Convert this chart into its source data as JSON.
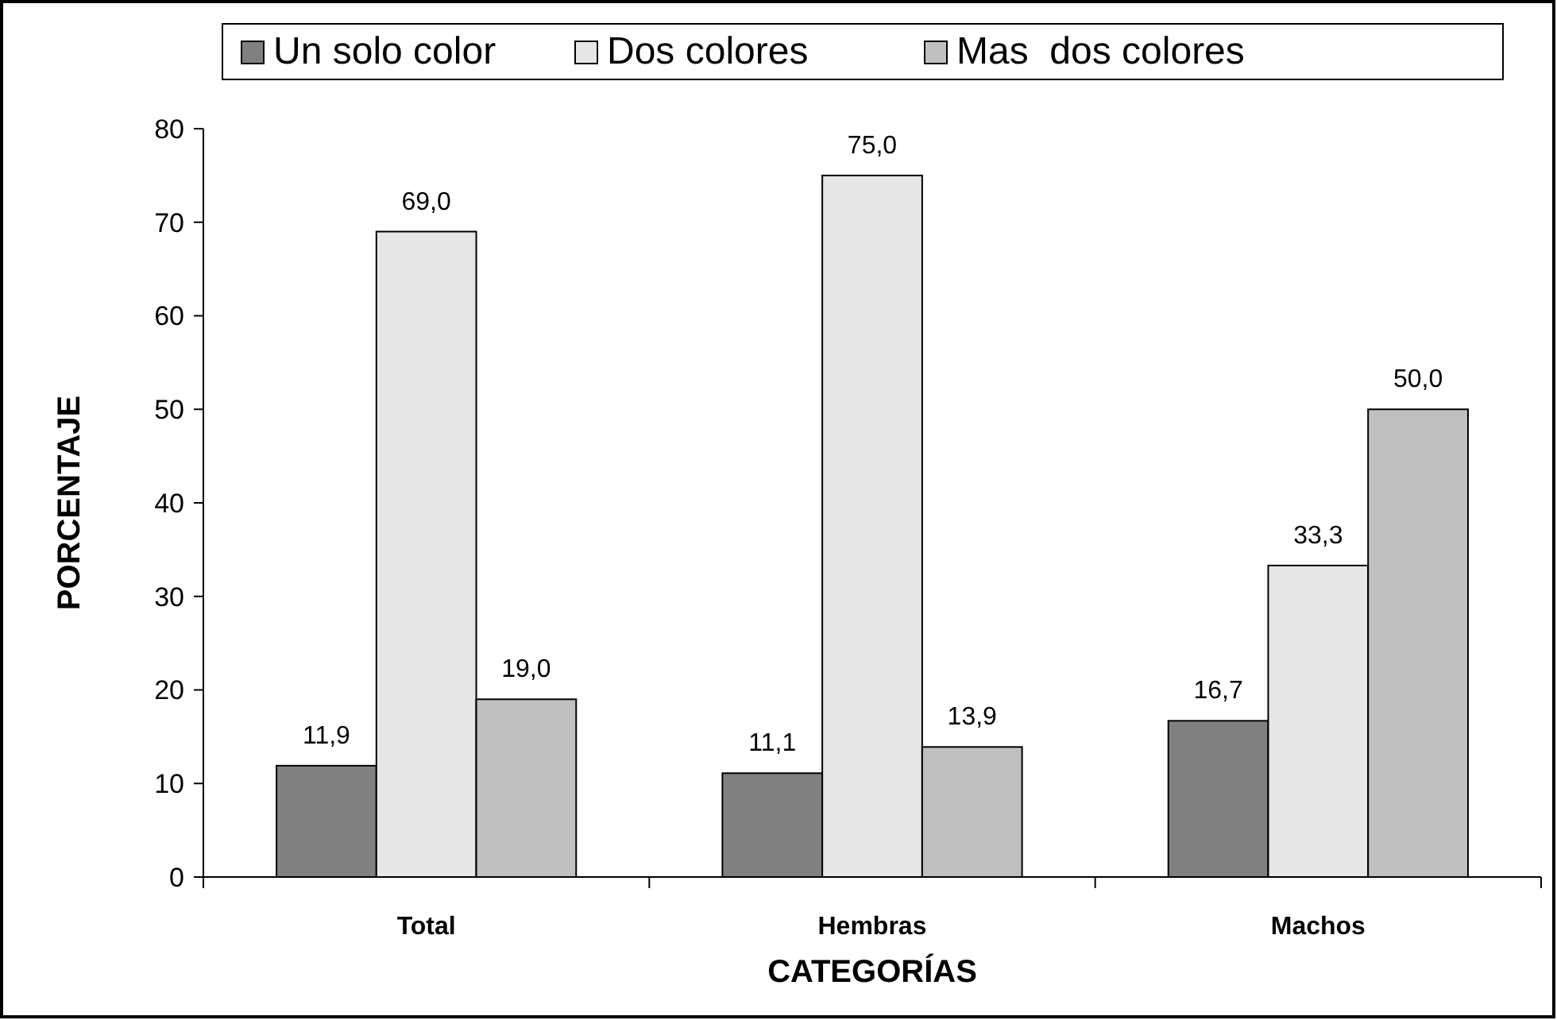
{
  "chart_data": {
    "type": "bar",
    "xlabel": "CATEGORÍAS",
    "ylabel": "PORCENTAJE",
    "categories": [
      "Total",
      "Hembras",
      "Machos"
    ],
    "series": [
      {
        "name": "Un solo color",
        "color": "#808080",
        "values": [
          11.9,
          11.1,
          16.7
        ],
        "value_labels": [
          "11,9",
          "11,1",
          "16,7"
        ]
      },
      {
        "name": "Dos colores",
        "color": "#e6e6e6",
        "values": [
          69.0,
          75.0,
          33.3
        ],
        "value_labels": [
          "69,0",
          "75,0",
          "33,3"
        ]
      },
      {
        "name": "Mas  dos colores",
        "color": "#c0c0c0",
        "values": [
          19.0,
          13.9,
          50.0
        ],
        "value_labels": [
          "19,0",
          "13,9",
          "50,0"
        ]
      }
    ],
    "ylim": [
      0,
      80
    ],
    "yticks": [
      0,
      10,
      20,
      30,
      40,
      50,
      60,
      70,
      80
    ],
    "legend": "top"
  }
}
